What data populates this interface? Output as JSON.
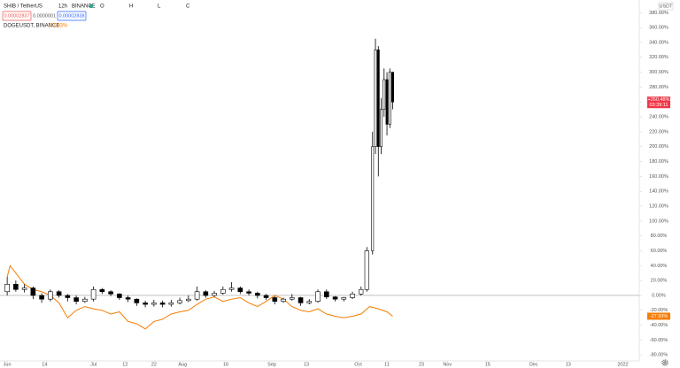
{
  "chart_data": {
    "type": "candlestick",
    "symbol": "SHIB / TetherUS",
    "interval": "12h",
    "exchange": "BINANCE",
    "ohlc_labels": [
      "O",
      "H",
      "L",
      "C"
    ],
    "price_boxes": [
      "0.00002837",
      "0.0000001",
      "0.00002838"
    ],
    "currency": "USDT",
    "last_label": "+260.48%",
    "countdown": "03:39:11",
    "up_color": "#ffffff",
    "down_color": "#000000",
    "x": [
      0,
      3,
      6,
      9,
      12,
      15,
      18,
      21,
      24,
      27,
      30,
      33,
      36,
      39,
      42,
      45,
      48,
      51,
      54,
      57,
      60,
      63,
      66,
      69,
      72,
      75,
      78,
      81,
      84,
      87,
      90,
      93,
      96,
      99,
      102,
      105,
      108,
      111,
      114,
      117,
      120,
      123,
      125,
      127,
      128,
      129,
      130,
      131,
      132,
      133,
      134
    ],
    "open": [
      5,
      15,
      8,
      10,
      0,
      -5,
      5,
      0,
      -3,
      -8,
      -5,
      8,
      5,
      2,
      -3,
      -5,
      -10,
      -12,
      -10,
      -12,
      -10,
      -7,
      -5,
      5,
      0,
      3,
      8,
      10,
      5,
      3,
      0,
      -3,
      -8,
      -5,
      -3,
      -10,
      -8,
      5,
      -2,
      -5,
      -3,
      2,
      8,
      60,
      200,
      330,
      200,
      250,
      290,
      230,
      300
    ],
    "high": [
      25,
      20,
      15,
      12,
      3,
      8,
      7,
      2,
      0,
      -2,
      12,
      10,
      7,
      3,
      0,
      -4,
      -7,
      -6,
      -7,
      -6,
      -3,
      0,
      12,
      7,
      6,
      12,
      18,
      12,
      8,
      5,
      2,
      -1,
      -3,
      2,
      -2,
      -5,
      8,
      8,
      -1,
      -2,
      5,
      12,
      65,
      220,
      345,
      335,
      265,
      305,
      300,
      305,
      300
    ],
    "low": [
      0,
      5,
      4,
      -5,
      -10,
      -8,
      -3,
      -8,
      -12,
      -10,
      -8,
      2,
      -1,
      -6,
      -9,
      -14,
      -16,
      -15,
      -16,
      -15,
      -12,
      -9,
      -7,
      -3,
      -2,
      1,
      5,
      2,
      0,
      -4,
      -6,
      -12,
      -10,
      -7,
      -14,
      -12,
      -10,
      -5,
      -8,
      -8,
      -5,
      0,
      5,
      55,
      190,
      160,
      190,
      240,
      215,
      225,
      250
    ],
    "close": [
      15,
      8,
      10,
      0,
      -5,
      5,
      0,
      -3,
      -8,
      -5,
      8,
      5,
      2,
      -3,
      -5,
      -10,
      -12,
      -10,
      -12,
      -10,
      -7,
      -5,
      5,
      0,
      3,
      8,
      10,
      5,
      3,
      0,
      -3,
      -8,
      -5,
      -3,
      -10,
      -8,
      5,
      -2,
      -5,
      -3,
      2,
      8,
      60,
      200,
      330,
      200,
      250,
      290,
      230,
      300,
      260
    ],
    "compare": {
      "type": "line",
      "name": "DOGEUSDT, BINANCE",
      "change_label": "-27.93%",
      "color": "#f57c00",
      "x": [
        0,
        1,
        3,
        6,
        9,
        12,
        15,
        18,
        21,
        24,
        27,
        30,
        33,
        36,
        39,
        42,
        45,
        48,
        51,
        54,
        57,
        60,
        63,
        66,
        69,
        72,
        75,
        78,
        81,
        84,
        87,
        90,
        93,
        96,
        99,
        102,
        105,
        108,
        111,
        114,
        117,
        120,
        123,
        126,
        129,
        132,
        134
      ],
      "values": [
        25,
        40,
        30,
        15,
        8,
        5,
        0,
        -10,
        -30,
        -20,
        -15,
        -18,
        -20,
        -25,
        -22,
        -35,
        -38,
        -45,
        -35,
        -32,
        -25,
        -22,
        -20,
        -12,
        -5,
        -2,
        -8,
        -5,
        -3,
        -10,
        -15,
        -8,
        0,
        -5,
        -15,
        -20,
        -22,
        -18,
        -25,
        -28,
        -30,
        -28,
        -25,
        -15,
        -18,
        -22,
        -27.93
      ]
    },
    "xlim": [
      -2.5,
      219.7
    ],
    "xticks": [
      {
        "value": 0,
        "label": "Jun"
      },
      {
        "value": 13,
        "label": "14"
      },
      {
        "value": 30,
        "label": "Jul"
      },
      {
        "value": 41,
        "label": "12"
      },
      {
        "value": 51,
        "label": "22"
      },
      {
        "value": 61,
        "label": "Aug"
      },
      {
        "value": 76,
        "label": "16"
      },
      {
        "value": 92,
        "label": "Sep"
      },
      {
        "value": 104,
        "label": "13"
      },
      {
        "value": 122,
        "label": "Oct"
      },
      {
        "value": 132,
        "label": "11"
      },
      {
        "value": 144,
        "label": "23"
      },
      {
        "value": 153,
        "label": "Nov"
      },
      {
        "value": 167,
        "label": "15"
      },
      {
        "value": 183,
        "label": "Dec"
      },
      {
        "value": 195,
        "label": "13"
      },
      {
        "value": 214,
        "label": "2022"
      }
    ],
    "ylim": [
      -88,
      397
    ],
    "yticks": [
      {
        "value": -80,
        "label": "-80.00%"
      },
      {
        "value": -60,
        "label": "-60.00%"
      },
      {
        "value": -40,
        "label": "-40.00%"
      },
      {
        "value": -20,
        "label": "-20.00%"
      },
      {
        "value": 0,
        "label": "0.00%"
      },
      {
        "value": 20,
        "label": "20.00%"
      },
      {
        "value": 40,
        "label": "40.00%"
      },
      {
        "value": 60,
        "label": "60.00%"
      },
      {
        "value": 80,
        "label": "80.00%"
      },
      {
        "value": 100,
        "label": "100.00%"
      },
      {
        "value": 120,
        "label": "120.00%"
      },
      {
        "value": 140,
        "label": "140.00%"
      },
      {
        "value": 160,
        "label": "160.00%"
      },
      {
        "value": 180,
        "label": "180.00%"
      },
      {
        "value": 200,
        "label": "200.00%"
      },
      {
        "value": 220,
        "label": "220.00%"
      },
      {
        "value": 240,
        "label": "240.00%"
      },
      {
        "value": 260,
        "label": "260.00%"
      },
      {
        "value": 280,
        "label": "280.00%"
      },
      {
        "value": 300,
        "label": "300.00%"
      },
      {
        "value": 320,
        "label": "320.00%"
      },
      {
        "value": 340,
        "label": "340.00%"
      },
      {
        "value": 360,
        "label": "360.00%"
      },
      {
        "value": 380,
        "label": "380.00%"
      }
    ]
  }
}
